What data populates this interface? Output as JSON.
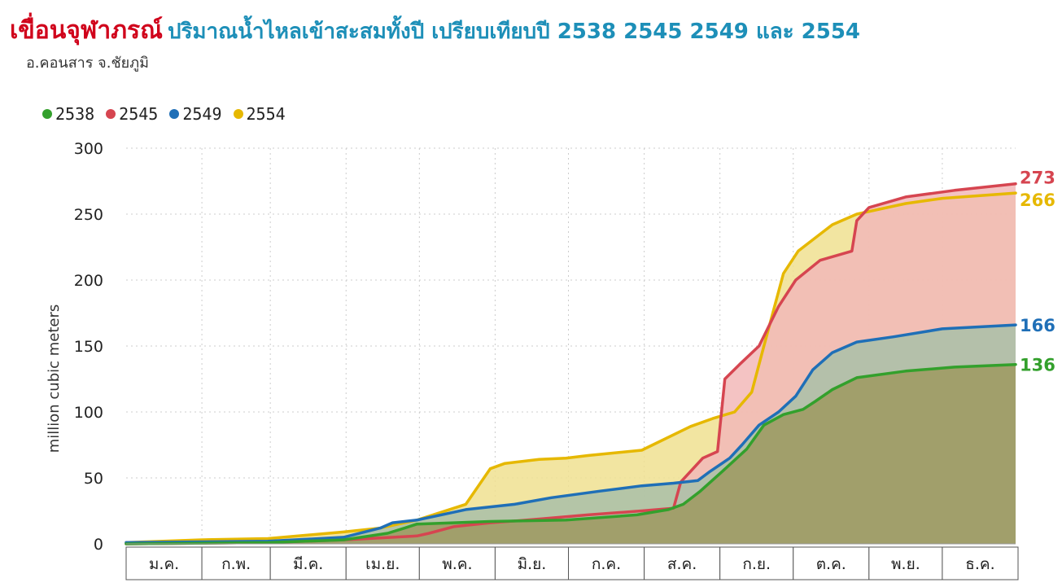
{
  "header": {
    "title_main": "เขื่อนจุฬาภรณ์",
    "title_rest": "ปริมาณน้ำไหลเข้าสะสมทั้งปี เปรียบเทียบปี 2538 2545 2549 และ 2554",
    "subtitle": "อ.คอนสาร จ.ชัยภูมิ"
  },
  "chart_data": {
    "type": "area",
    "ylabel": "million cubic meters",
    "ylim": [
      0,
      300
    ],
    "yticks": [
      "0",
      "50",
      "100",
      "150",
      "200",
      "250",
      "300"
    ],
    "categories": [
      "ม.ค.",
      "ก.พ.",
      "มี.ค.",
      "เม.ย.",
      "พ.ค.",
      "มิ.ย.",
      "ก.ค.",
      "ส.ค.",
      "ก.ย.",
      "ต.ค.",
      "พ.ย.",
      "ธ.ค."
    ],
    "legend_position": "top-left",
    "grid": true,
    "x_domain": [
      1,
      365
    ],
    "series": [
      {
        "name": "2554",
        "color": "#e6b800",
        "fill": "#f0e090",
        "end_label": "266",
        "points": [
          [
            1,
            1
          ],
          [
            31,
            3
          ],
          [
            59,
            4
          ],
          [
            90,
            9
          ],
          [
            105,
            12
          ],
          [
            120,
            18
          ],
          [
            140,
            30
          ],
          [
            150,
            57
          ],
          [
            156,
            61
          ],
          [
            170,
            64
          ],
          [
            181,
            65
          ],
          [
            190,
            67
          ],
          [
            212,
            71
          ],
          [
            232,
            89
          ],
          [
            241,
            95
          ],
          [
            250,
            100
          ],
          [
            257,
            115
          ],
          [
            262,
            150
          ],
          [
            270,
            205
          ],
          [
            276,
            222
          ],
          [
            290,
            242
          ],
          [
            300,
            250
          ],
          [
            320,
            258
          ],
          [
            335,
            262
          ],
          [
            365,
            266
          ]
        ]
      },
      {
        "name": "2545",
        "color": "#d64550",
        "fill": "#f2b9b9",
        "end_label": "273",
        "points": [
          [
            1,
            0
          ],
          [
            59,
            1
          ],
          [
            90,
            3
          ],
          [
            120,
            6
          ],
          [
            125,
            8
          ],
          [
            135,
            13
          ],
          [
            150,
            16
          ],
          [
            165,
            18
          ],
          [
            190,
            22
          ],
          [
            212,
            25
          ],
          [
            225,
            27
          ],
          [
            228,
            47
          ],
          [
            237,
            65
          ],
          [
            243,
            70
          ],
          [
            246,
            125
          ],
          [
            252,
            136
          ],
          [
            260,
            150
          ],
          [
            268,
            180
          ],
          [
            275,
            200
          ],
          [
            285,
            215
          ],
          [
            298,
            222
          ],
          [
            300,
            245
          ],
          [
            305,
            255
          ],
          [
            320,
            263
          ],
          [
            340,
            268
          ],
          [
            365,
            273
          ]
        ]
      },
      {
        "name": "2549",
        "color": "#1f6fb7",
        "fill": "#a9c0a8",
        "end_label": "166",
        "points": [
          [
            1,
            1
          ],
          [
            59,
            2
          ],
          [
            90,
            5
          ],
          [
            105,
            12
          ],
          [
            110,
            16
          ],
          [
            120,
            18
          ],
          [
            140,
            26
          ],
          [
            160,
            30
          ],
          [
            175,
            35
          ],
          [
            195,
            40
          ],
          [
            212,
            44
          ],
          [
            225,
            46
          ],
          [
            235,
            48
          ],
          [
            240,
            55
          ],
          [
            248,
            65
          ],
          [
            253,
            75
          ],
          [
            260,
            90
          ],
          [
            268,
            100
          ],
          [
            275,
            112
          ],
          [
            282,
            132
          ],
          [
            290,
            145
          ],
          [
            300,
            153
          ],
          [
            315,
            157
          ],
          [
            335,
            163
          ],
          [
            365,
            166
          ]
        ]
      },
      {
        "name": "2538",
        "color": "#33a02c",
        "fill": "#9e9960",
        "end_label": "136",
        "points": [
          [
            1,
            0
          ],
          [
            59,
            1
          ],
          [
            90,
            3
          ],
          [
            108,
            8
          ],
          [
            115,
            12
          ],
          [
            120,
            15
          ],
          [
            150,
            17
          ],
          [
            181,
            18
          ],
          [
            210,
            22
          ],
          [
            223,
            26
          ],
          [
            229,
            30
          ],
          [
            236,
            40
          ],
          [
            245,
            55
          ],
          [
            255,
            72
          ],
          [
            262,
            90
          ],
          [
            270,
            98
          ],
          [
            278,
            102
          ],
          [
            283,
            108
          ],
          [
            290,
            117
          ],
          [
            300,
            126
          ],
          [
            320,
            131
          ],
          [
            340,
            134
          ],
          [
            365,
            136
          ]
        ]
      }
    ]
  }
}
